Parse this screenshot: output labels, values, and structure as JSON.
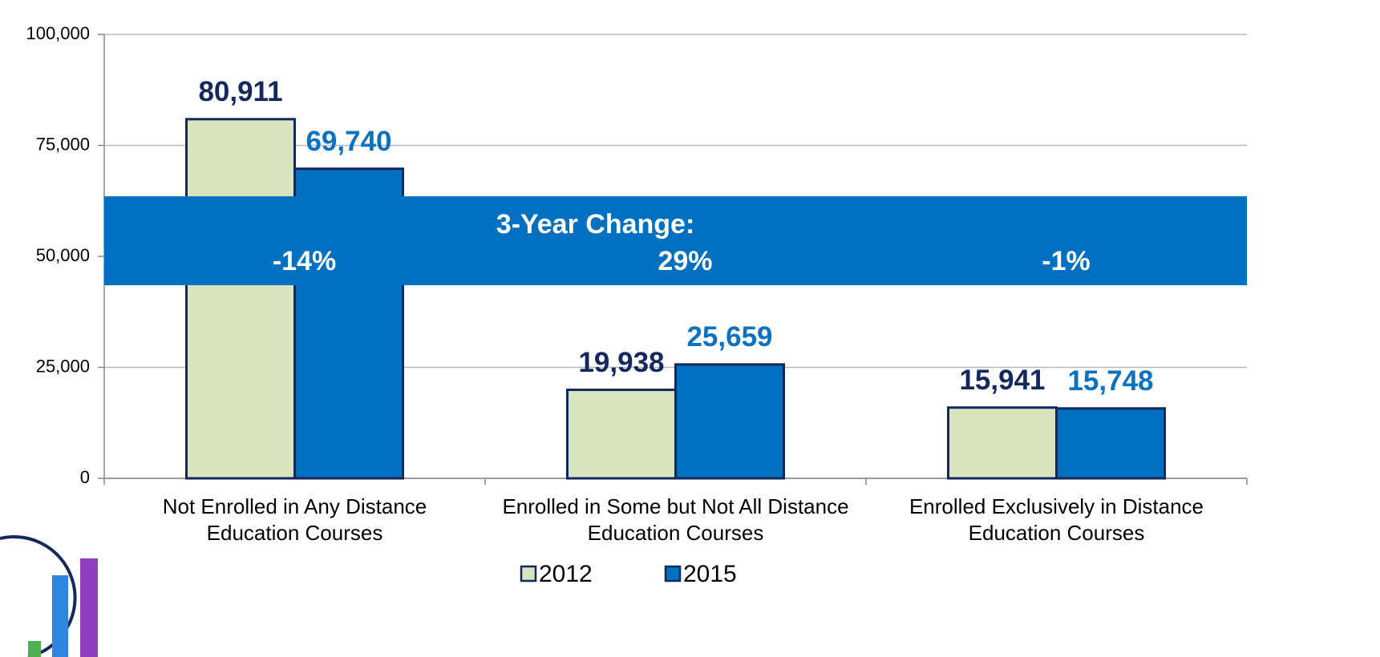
{
  "chart_data": {
    "type": "bar",
    "categories": [
      "Not Enrolled in Any Distance Education Courses",
      "Enrolled in Some but Not All Distance Education Courses",
      "Enrolled Exclusively in Distance Education Courses"
    ],
    "series": [
      {
        "name": "2012",
        "color": "#d7e4bd",
        "label_color": "#14285e",
        "values": [
          80911,
          19938,
          15941
        ],
        "value_labels": [
          "80,911",
          "19,938",
          "15,941"
        ]
      },
      {
        "name": "2015",
        "color": "#0070c0",
        "label_color": "#0a72c0",
        "values": [
          69740,
          25659,
          15748
        ],
        "value_labels": [
          "69,740",
          "25,659",
          "15,748"
        ]
      }
    ],
    "bar_border": "#14285e",
    "ylim": [
      0,
      100000
    ],
    "yticks": [
      0,
      {
        "value": 25000,
        "label": "25,000"
      },
      {
        "value": 50000,
        "label": "50,000"
      },
      {
        "value": 75000,
        "label": "75,000"
      },
      {
        "value": 100000,
        "label": "100,000"
      }
    ],
    "grid": true,
    "legend": "bottom",
    "annotation": {
      "title": "3-Year Change:",
      "values": [
        "-14%",
        "29%",
        "-1%"
      ],
      "color": "#0070c0"
    }
  }
}
